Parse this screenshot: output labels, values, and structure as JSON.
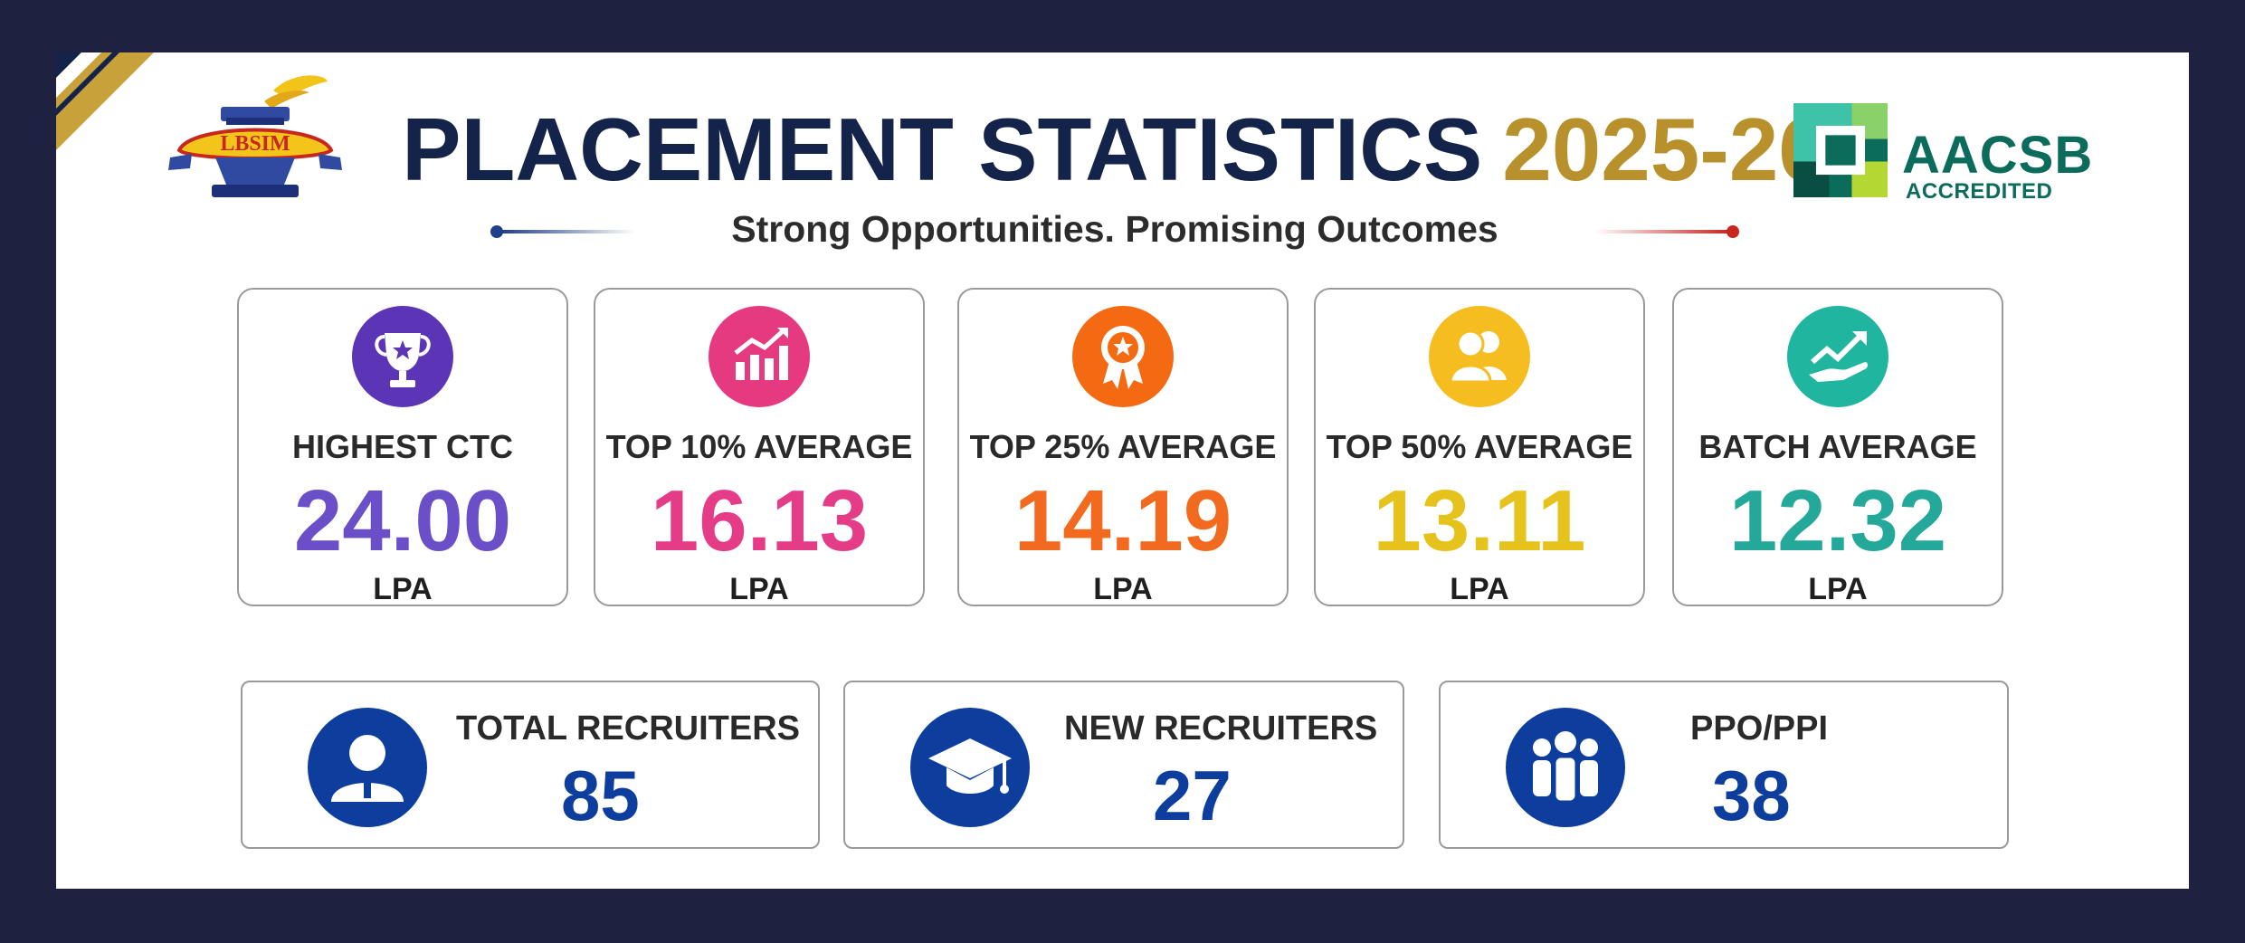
{
  "header": {
    "logo_text": "LBSIM",
    "title_main": "PLACEMENT STATISTICS",
    "title_year": "2025-26",
    "subtitle": "Strong Opportunities. Promising Outcomes",
    "accreditation_name": "AACSB",
    "accreditation_sub": "ACCREDITED"
  },
  "stats": [
    {
      "label": "HIGHEST CTC",
      "value": "24.00",
      "unit": "LPA",
      "color": "#6a4fc8",
      "icon_color": "#5b35b5",
      "icon": "trophy-icon"
    },
    {
      "label": "TOP 10% AVERAGE",
      "value": "16.13",
      "unit": "LPA",
      "color": "#e43c86",
      "icon_color": "#e63a80",
      "icon": "growth-chart-icon"
    },
    {
      "label": "TOP 25% AVERAGE",
      "value": "14.19",
      "unit": "LPA",
      "color": "#f26a1f",
      "icon_color": "#f46a12",
      "icon": "award-badge-icon"
    },
    {
      "label": "TOP 50% AVERAGE",
      "value": "13.11",
      "unit": "LPA",
      "color": "#e6c21c",
      "icon_color": "#f5bd1f",
      "icon": "users-icon"
    },
    {
      "label": "BATCH AVERAGE",
      "value": "12.32",
      "unit": "LPA",
      "color": "#24a89a",
      "icon_color": "#1fb59e",
      "icon": "trend-hand-icon"
    }
  ],
  "recruiters": [
    {
      "label": "TOTAL RECRUITERS",
      "value": "85",
      "icon": "person-icon"
    },
    {
      "label": "NEW RECRUITERS",
      "value": "27",
      "icon": "graduation-cap-icon"
    },
    {
      "label": "PPO/PPI",
      "value": "38",
      "icon": "group-icon"
    }
  ],
  "colors": {
    "frame": "#1e2140",
    "navy": "#14234a",
    "gold": "#b8912d",
    "recruiter_blue": "#0d3e9e",
    "aacsb_green": "#0b6c5c"
  }
}
